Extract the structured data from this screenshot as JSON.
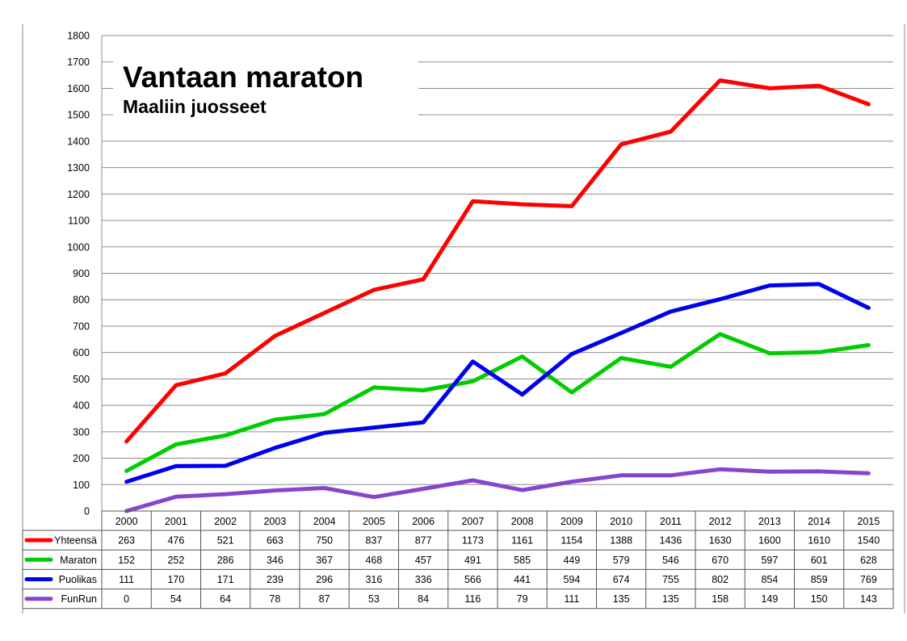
{
  "chart_data": {
    "type": "line",
    "title": "Vantaan maraton",
    "subtitle": "Maaliin juosseet",
    "xlabel": "",
    "ylabel": "",
    "ylim": [
      0,
      1800
    ],
    "yticks": [
      0,
      100,
      200,
      300,
      400,
      500,
      600,
      700,
      800,
      900,
      1000,
      1100,
      1200,
      1300,
      1400,
      1500,
      1600,
      1700,
      1800
    ],
    "grid": true,
    "legend": "data-table-left",
    "categories": [
      "2000",
      "2001",
      "2002",
      "2003",
      "2004",
      "2005",
      "2006",
      "2007",
      "2008",
      "2009",
      "2010",
      "2011",
      "2012",
      "2013",
      "2014",
      "2015"
    ],
    "series": [
      {
        "name": "Yhteensä",
        "color": "#ff0000",
        "values": [
          263,
          476,
          521,
          663,
          750,
          837,
          877,
          1173,
          1161,
          1154,
          1388,
          1436,
          1630,
          1600,
          1610,
          1540
        ]
      },
      {
        "name": "Maraton",
        "color": "#00cc00",
        "values": [
          152,
          252,
          286,
          346,
          367,
          468,
          457,
          491,
          585,
          449,
          579,
          546,
          670,
          597,
          601,
          628
        ]
      },
      {
        "name": "Puolikas",
        "color": "#0000ee",
        "values": [
          111,
          170,
          171,
          239,
          296,
          316,
          336,
          566,
          441,
          594,
          674,
          755,
          802,
          854,
          859,
          769
        ]
      },
      {
        "name": "FunRun",
        "color": "#8844cc",
        "values": [
          0,
          54,
          64,
          78,
          87,
          53,
          84,
          116,
          79,
          111,
          135,
          135,
          158,
          149,
          150,
          143
        ]
      }
    ]
  }
}
